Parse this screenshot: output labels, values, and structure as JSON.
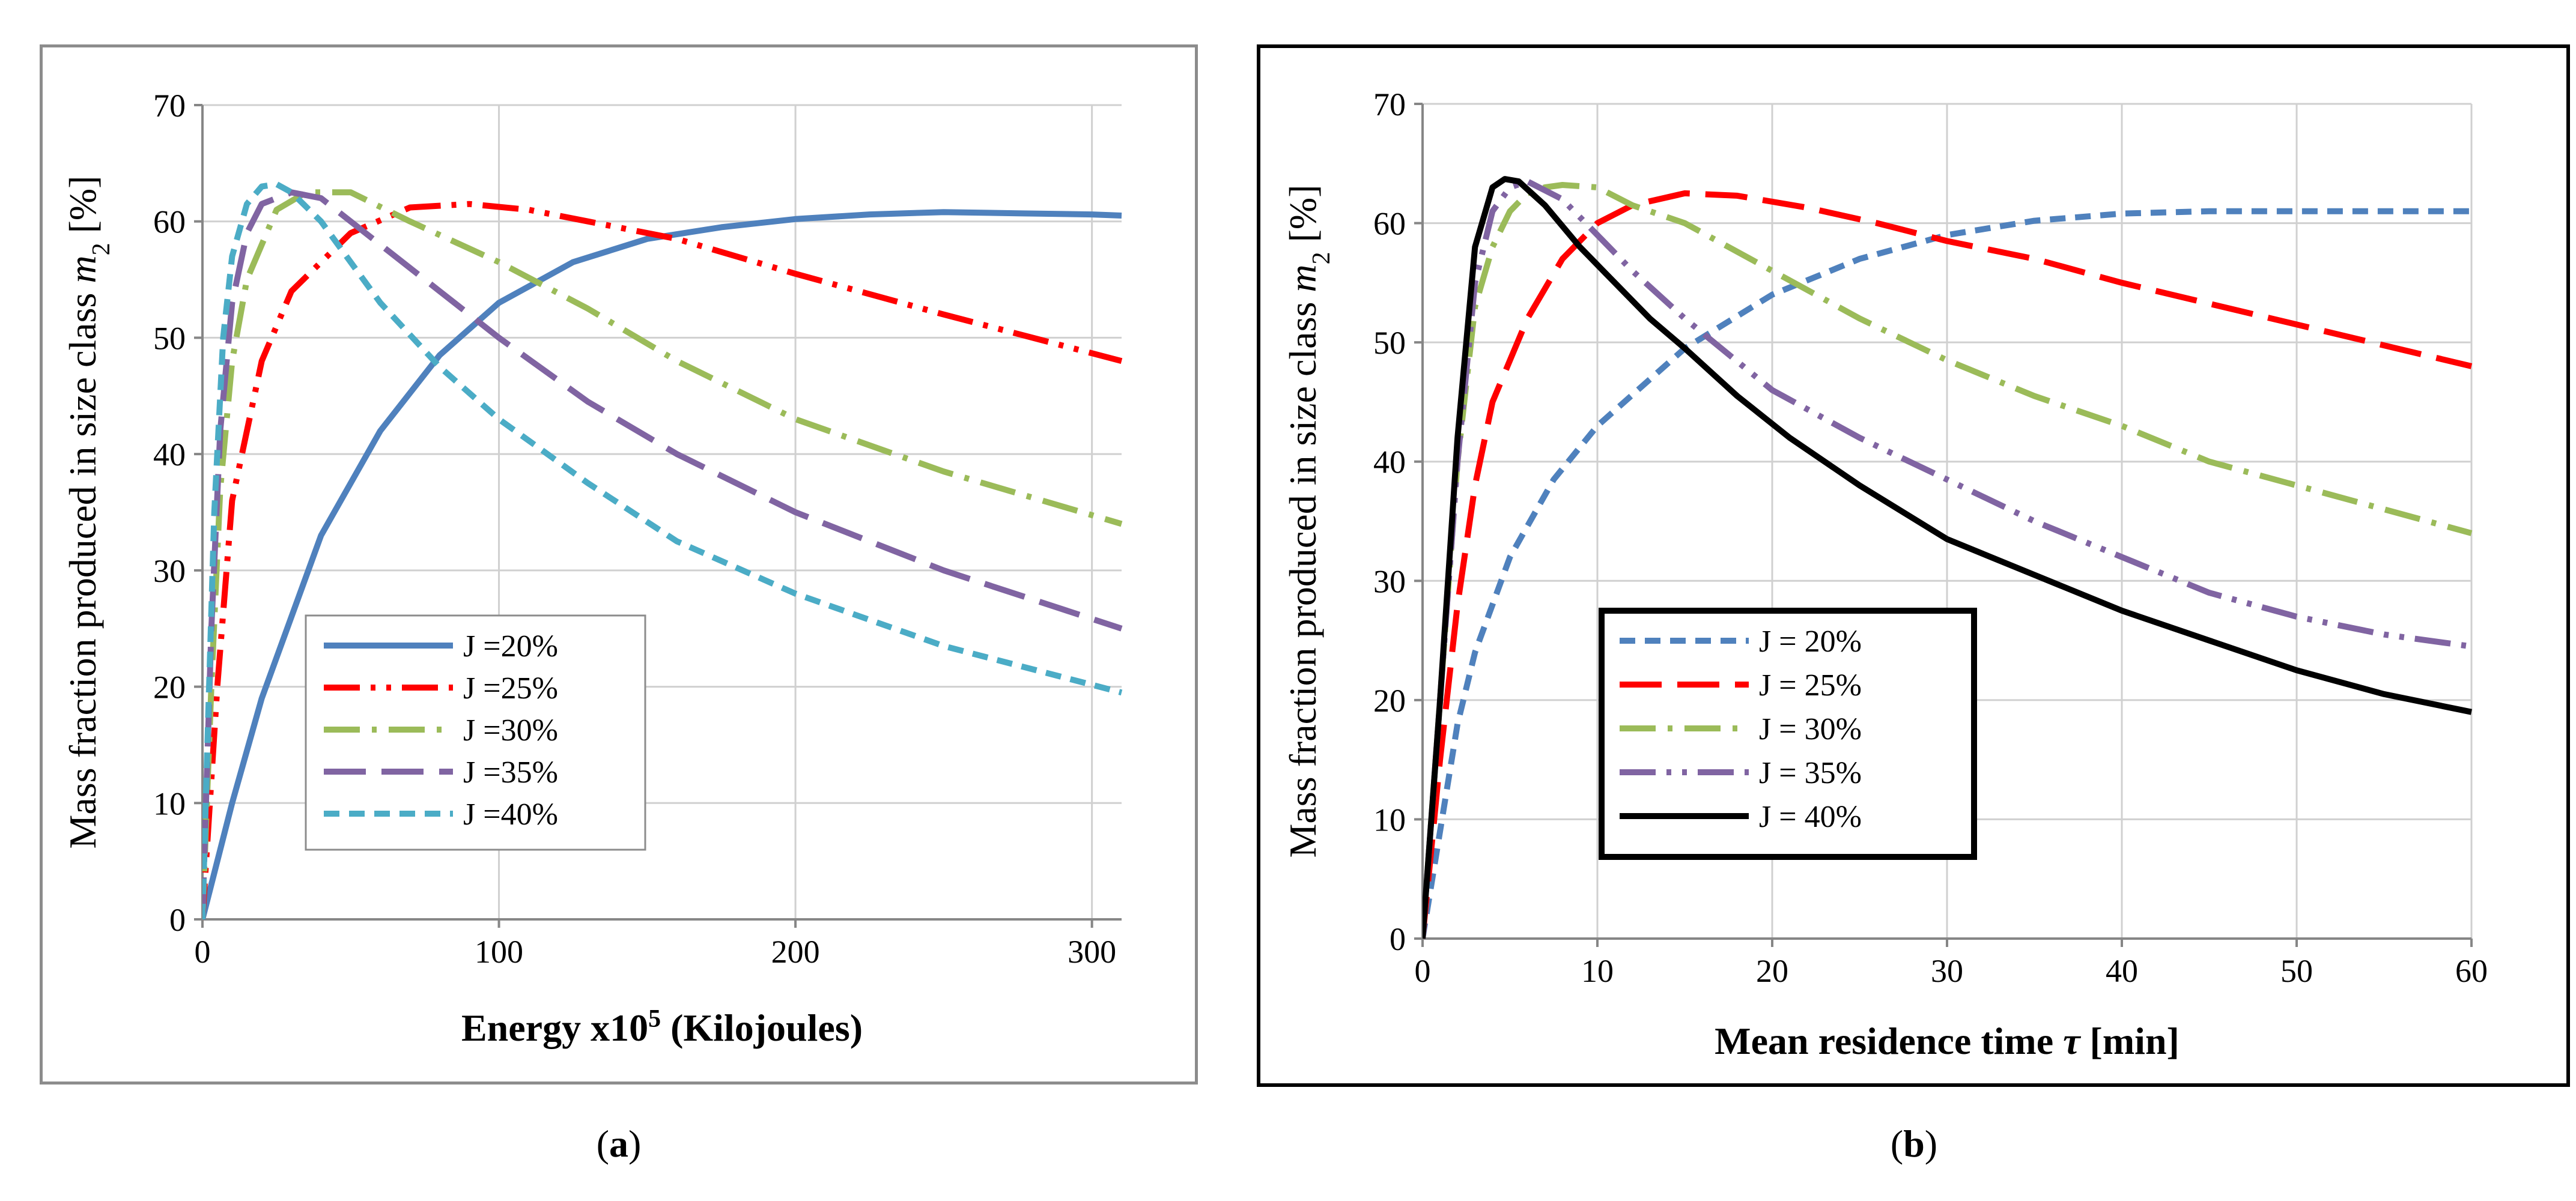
{
  "chart_data": [
    {
      "panel": "a",
      "type": "line",
      "xlabel": "Energy x10",
      "xlabel_sup": "5",
      "xlabel_tail": "  (Kilojoules)",
      "ylabel": "Mass fraction produced in size class ",
      "ylabel_var": "m",
      "ylabel_sub": "2",
      "ylabel_tail": " [%]",
      "xlim": [
        0,
        310
      ],
      "ylim": [
        0,
        70
      ],
      "xticks": [
        0,
        100,
        200,
        300
      ],
      "yticks": [
        0,
        10,
        20,
        30,
        40,
        50,
        60,
        70
      ],
      "grid": true,
      "legend_position": "bottom-center",
      "series": [
        {
          "name": "J =20%",
          "color": "#4f81bd",
          "dash": "solid",
          "x": [
            0,
            5,
            10,
            20,
            40,
            60,
            80,
            100,
            125,
            150,
            175,
            200,
            225,
            250,
            275,
            300,
            310
          ],
          "y": [
            0,
            5,
            10,
            19,
            33,
            42,
            48.5,
            53,
            56.5,
            58.5,
            59.5,
            60.2,
            60.6,
            60.8,
            60.7,
            60.6,
            60.5
          ]
        },
        {
          "name": "J =25%",
          "color": "#ff0000",
          "dash": "dashdotdot",
          "x": [
            0,
            5,
            10,
            20,
            30,
            50,
            70,
            90,
            110,
            130,
            160,
            200,
            250,
            310
          ],
          "y": [
            0,
            20,
            36,
            48,
            54,
            59,
            61.2,
            61.5,
            61,
            60,
            58.5,
            55.5,
            52,
            48
          ]
        },
        {
          "name": "J =30%",
          "color": "#9bbb59",
          "dash": "dashdot",
          "x": [
            0,
            3,
            6,
            10,
            15,
            25,
            35,
            50,
            70,
            100,
            130,
            160,
            200,
            250,
            310
          ],
          "y": [
            0,
            20,
            37,
            48,
            55,
            61,
            62.5,
            62.5,
            60,
            56.5,
            52.5,
            48,
            43,
            38.5,
            34
          ]
        },
        {
          "name": "J =35%",
          "color": "#8064a2",
          "dash": "longdash",
          "x": [
            0,
            3,
            6,
            10,
            15,
            20,
            30,
            40,
            60,
            80,
            100,
            130,
            160,
            200,
            250,
            310
          ],
          "y": [
            0,
            25,
            42,
            53,
            59,
            61.5,
            62.5,
            62,
            58,
            54,
            50,
            44.5,
            40,
            35,
            30,
            25
          ]
        },
        {
          "name": "J =40%",
          "color": "#4bacc6",
          "dash": "shortdash",
          "x": [
            0,
            2,
            4,
            7,
            10,
            15,
            20,
            25,
            30,
            40,
            60,
            80,
            100,
            130,
            160,
            200,
            250,
            310
          ],
          "y": [
            0,
            18,
            35,
            50,
            57,
            61.5,
            63,
            63.2,
            62.5,
            60,
            53,
            47.5,
            43,
            37.5,
            32.5,
            28,
            23.5,
            19.5
          ]
        }
      ]
    },
    {
      "panel": "b",
      "type": "line",
      "xlabel": "Mean residence time ",
      "xlabel_var": "τ",
      "xlabel_tail": " [min]",
      "ylabel": "Mass fraction produced in size class ",
      "ylabel_var": "m",
      "ylabel_sub": "2",
      "ylabel_tail": " [%]",
      "xlim": [
        0,
        60
      ],
      "ylim": [
        0,
        70
      ],
      "xticks": [
        0,
        10,
        20,
        30,
        40,
        50,
        60
      ],
      "yticks": [
        0,
        10,
        20,
        30,
        40,
        50,
        60,
        70
      ],
      "grid": true,
      "legend_position": "bottom-center",
      "series": [
        {
          "name": "J = 20%",
          "color": "#4f81bd",
          "dash": "shortdash",
          "x": [
            0,
            1,
            2,
            3,
            5,
            7.5,
            10,
            15,
            20,
            25,
            30,
            35,
            40,
            45,
            50,
            55,
            60
          ],
          "y": [
            0,
            9,
            18,
            24,
            32,
            38.5,
            43,
            49.5,
            54,
            57,
            59,
            60.2,
            60.8,
            61,
            61,
            61,
            61
          ]
        },
        {
          "name": "J = 25%",
          "color": "#ff0000",
          "dash": "longdash",
          "x": [
            0,
            1,
            2,
            3,
            4,
            6,
            8,
            10,
            12,
            15,
            18,
            22,
            26,
            30,
            35,
            40,
            50,
            60
          ],
          "y": [
            0,
            15,
            28,
            38,
            45,
            52,
            57,
            60,
            61.5,
            62.5,
            62.3,
            61.3,
            60,
            58.5,
            57,
            55,
            51.5,
            48
          ]
        },
        {
          "name": "J = 30%",
          "color": "#9bbb59",
          "dash": "dashdot",
          "x": [
            0,
            1,
            2,
            3,
            4,
            5,
            6,
            7,
            8,
            10,
            12,
            15,
            20,
            25,
            30,
            35,
            40,
            45,
            50,
            55,
            60
          ],
          "y": [
            0,
            20,
            40,
            53,
            58,
            61,
            62.5,
            63,
            63.2,
            63,
            61.5,
            60,
            56,
            52,
            48.5,
            45.5,
            43,
            40,
            38,
            36,
            34
          ]
        },
        {
          "name": "J = 35%",
          "color": "#8064a2",
          "dash": "dashdotdot",
          "x": [
            0,
            1,
            2,
            3,
            4,
            5,
            6,
            8,
            10,
            12,
            15,
            20,
            25,
            30,
            35,
            40,
            45,
            50,
            55,
            60
          ],
          "y": [
            0,
            20,
            40,
            55,
            61,
            63,
            63.5,
            62,
            59,
            56,
            52,
            46,
            42,
            38.5,
            35,
            32,
            29,
            27,
            25.5,
            24.5
          ]
        },
        {
          "name": "J = 40%",
          "color": "#000000",
          "dash": "solid",
          "x": [
            0,
            1,
            2,
            3,
            4,
            4.7,
            5.5,
            7,
            9,
            11,
            13,
            15,
            18,
            21,
            25,
            30,
            35,
            40,
            45,
            50,
            55,
            60
          ],
          "y": [
            0,
            20,
            42,
            58,
            63,
            63.7,
            63.5,
            61.5,
            58,
            55,
            52,
            49.5,
            45.5,
            42,
            38,
            33.5,
            30.5,
            27.5,
            25,
            22.5,
            20.5,
            19
          ]
        }
      ]
    }
  ],
  "captions": {
    "a": {
      "open": "(",
      "letter": "a",
      "close": ")"
    },
    "b": {
      "open": "(",
      "letter": "b",
      "close": ")"
    }
  }
}
